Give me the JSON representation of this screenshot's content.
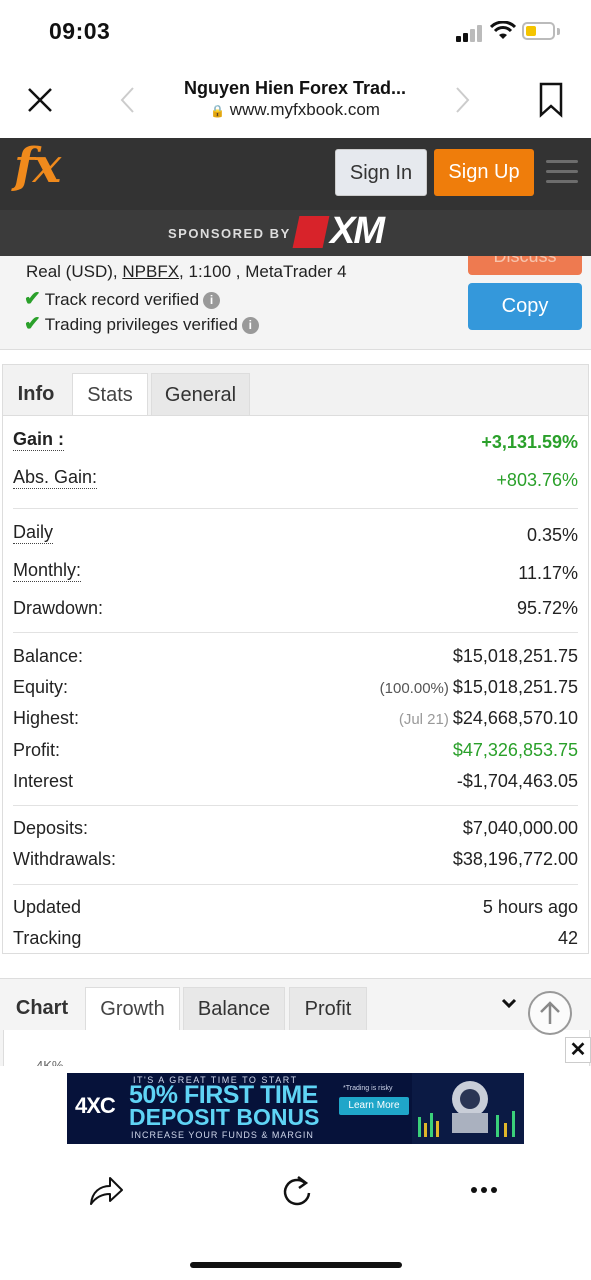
{
  "status_bar": {
    "time": "09:03"
  },
  "browser": {
    "title": "Nguyen Hien Forex Trad...",
    "url": "www.myfxbook.com"
  },
  "header": {
    "logo": "fx",
    "sign_in": "Sign In",
    "sign_up": "Sign Up",
    "sponsored_by": "SPONSORED BY",
    "sponsor_name": "XM"
  },
  "account": {
    "type": "Real (USD),",
    "broker": "NPBFX",
    "leverage_platform": ", 1:100 , MetaTrader 4",
    "track_record": "Track record verified",
    "trading_privileges": "Trading privileges verified",
    "discuss_button": "Discuss",
    "copy_button": "Copy"
  },
  "stats_tabs": [
    "Info",
    "Stats",
    "General"
  ],
  "stats": {
    "gain_label": "Gain :",
    "gain_value": "+3,131.59%",
    "abs_gain_label": "Abs. Gain:",
    "abs_gain_value": "+803.76%",
    "daily_label": "Daily",
    "daily_value": "0.35%",
    "monthly_label": "Monthly:",
    "monthly_value": "11.17%",
    "drawdown_label": "Drawdown:",
    "drawdown_value": "95.72%",
    "balance_label": "Balance:",
    "balance_value": "$15,018,251.75",
    "equity_label": "Equity:",
    "equity_note": "(100.00%)",
    "equity_value": "$15,018,251.75",
    "highest_label": "Highest:",
    "highest_note": "(Jul 21)",
    "highest_value": "$24,668,570.10",
    "profit_label": "Profit:",
    "profit_value": "$47,326,853.75",
    "interest_label": "Interest",
    "interest_value": "-$1,704,463.05",
    "deposits_label": "Deposits:",
    "deposits_value": "$7,040,000.00",
    "withdrawals_label": "Withdrawals:",
    "withdrawals_value": "$38,196,772.00",
    "updated_label": "Updated",
    "updated_value": "5 hours ago",
    "tracking_label": "Tracking",
    "tracking_value": "42"
  },
  "chart_tabs": [
    "Chart",
    "Growth",
    "Balance",
    "Profit"
  ],
  "chart_ytick": "4K%",
  "ad": {
    "brand": "4XC",
    "top_line": "IT'S A GREAT TIME TO START",
    "headline_1": "50% FIRST TIME",
    "headline_2": "DEPOSIT BONUS",
    "subline": "INCREASE YOUR FUNDS & MARGIN",
    "risk": "*Trading is risky",
    "cta": "Learn More"
  },
  "colors": {
    "header_bg": "#333333",
    "sign_up": "#ef7d0b",
    "copy": "#3498db",
    "gain_green": "#2aa02a"
  }
}
